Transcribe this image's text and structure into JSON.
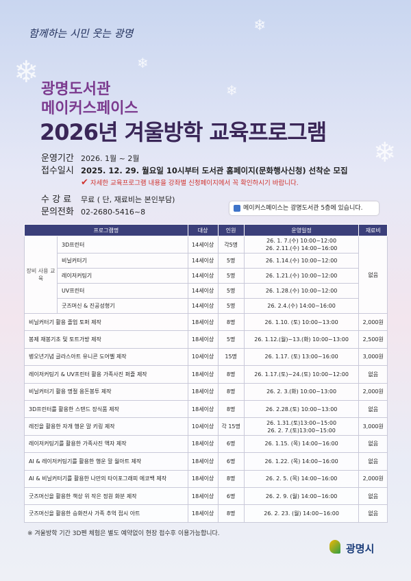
{
  "header": {
    "slogan": "함께하는 시민 웃는 광명",
    "title_line1": "광명도서관",
    "title_line2": "메이커스페이스",
    "title_main": "2026년 겨울방학 교육프로그램"
  },
  "info": {
    "items": [
      {
        "label": "운영기간",
        "value": "2026. 1월 ~ 2월"
      },
      {
        "label": "접수일시",
        "value": "2025. 12. 29. 월요일 10시부터 도서관 홈페이지(문화행사신청) 선착순 모집"
      }
    ],
    "notice": "자세한 교육프로그램 내용을 강좌별 신청페이지에서 꼭 확인하시기 바랍니다.",
    "items2": [
      {
        "label": "수 강 료",
        "value": "무료 ( 단, 재료비는 본인부담)"
      },
      {
        "label": "문의전화",
        "value": "02-2680-5416~8"
      }
    ],
    "badge": "메이커스페이스는 광명도서관 5층에 있습니다."
  },
  "table": {
    "columns": [
      "프로그램명",
      "대상",
      "인원",
      "운영일정",
      "재료비"
    ],
    "group": {
      "label": "장비 사용 교육",
      "fee": "없음",
      "rows": [
        {
          "name": "3D프린터",
          "target": "14세이상",
          "count": "각5명",
          "schedule": [
            "26. 1. 7.(수) 10:00~12:00",
            "26. 2.11.(수) 14:00~16:00"
          ]
        },
        {
          "name": "비닐커터기",
          "target": "14세이상",
          "count": "5명",
          "schedule": [
            "26. 1.14.(수) 10:00~12:00"
          ]
        },
        {
          "name": "레이저커팅기",
          "target": "14세이상",
          "count": "5명",
          "schedule": [
            "26. 1.21.(수) 10:00~12:00"
          ]
        },
        {
          "name": "UV프린터",
          "target": "14세이상",
          "count": "5명",
          "schedule": [
            "26. 1.28.(수) 10:00~12:00"
          ]
        },
        {
          "name": "굿즈머신 & 진공성형기",
          "target": "14세이상",
          "count": "5명",
          "schedule": [
            "26. 2.4.(수) 14:00~16:00"
          ]
        }
      ]
    },
    "rows": [
      {
        "name": "비닐커터기 활용 졸업 토퍼 제작",
        "target": "18세이상",
        "count": "8명",
        "schedule": [
          "26. 1.10. (토) 10:00~13:00"
        ],
        "fee": "2,000원"
      },
      {
        "name": "봉제 재봉기초 및 토트가방 제작",
        "target": "18세이상",
        "count": "5명",
        "schedule": [
          "26. 1.12.(월)~13.(화) 10:00~13:00"
        ],
        "fee": "2,500원"
      },
      {
        "name": "병오년기념 글라스아트 유니콘 도어벨 제작",
        "target": "10세이상",
        "count": "15명",
        "schedule": [
          "26. 1.17. (토) 13:00~16:00"
        ],
        "fee": "3,000원"
      },
      {
        "name": "레이저커팅기 & UV프린터 활용 가족사진 퍼즐 제작",
        "target": "18세이상",
        "count": "8명",
        "schedule": [
          "26. 1.17.(토)~24.(토) 10:00~12:00"
        ],
        "fee": "없음"
      },
      {
        "name": "비닐커터기 활용 명절 용돈봉투 제작",
        "target": "18세이상",
        "count": "8명",
        "schedule": [
          "26. 2. 3.(화) 10:00~13:00"
        ],
        "fee": "2,000원"
      },
      {
        "name": "3D프린터를 활용한 스탠드 장식품 제작",
        "target": "18세이상",
        "count": "8명",
        "schedule": [
          "26. 2.28.(토) 10:00~13:00"
        ],
        "fee": "없음"
      },
      {
        "name": "레진을 활용한 자개 행운 말 키링 제작",
        "target": "10세이상",
        "count": "각 15명",
        "schedule": [
          "26. 1.31.(토)13:00~15:00",
          "26. 2. 7.(토)13:00~15:00"
        ],
        "fee": "3,000원"
      },
      {
        "name": "레이저커팅기를 활용한 가족사진 액자 제작",
        "target": "18세이상",
        "count": "6명",
        "schedule": [
          "26. 1.15. (목) 14:00~16:00"
        ],
        "fee": "없음"
      },
      {
        "name": "AI & 레이저커팅기를 활용한 행운 말 월아트 제작",
        "target": "18세이상",
        "count": "6명",
        "schedule": [
          "26. 1.22. (목) 14:00~16:00"
        ],
        "fee": "없음"
      },
      {
        "name": "AI & 비닐커터기를 활용한 나만의 타이포그래피 에코백 제작",
        "target": "18세이상",
        "count": "8명",
        "schedule": [
          "26. 2. 5. (목) 14:00~16:00"
        ],
        "fee": "2,000원"
      },
      {
        "name": "굿즈머신을 활용한 책상 위 작은 정원 화분 제작",
        "target": "18세이상",
        "count": "6명",
        "schedule": [
          "26. 2. 9. (월) 14:00~16:00"
        ],
        "fee": "없음"
      },
      {
        "name": "굿즈머신을 활용한 승화전사 가족 추억 접시 아트",
        "target": "18세이상",
        "count": "8명",
        "schedule": [
          "26. 2. 23. (월) 14:00~16:00"
        ],
        "fee": "없음"
      }
    ]
  },
  "footer": {
    "note": "※ 겨울방학 기간 3D펜 체험은 별도 예약없이 현장 접수후 이용가능합니다.",
    "logo": "광명시"
  }
}
